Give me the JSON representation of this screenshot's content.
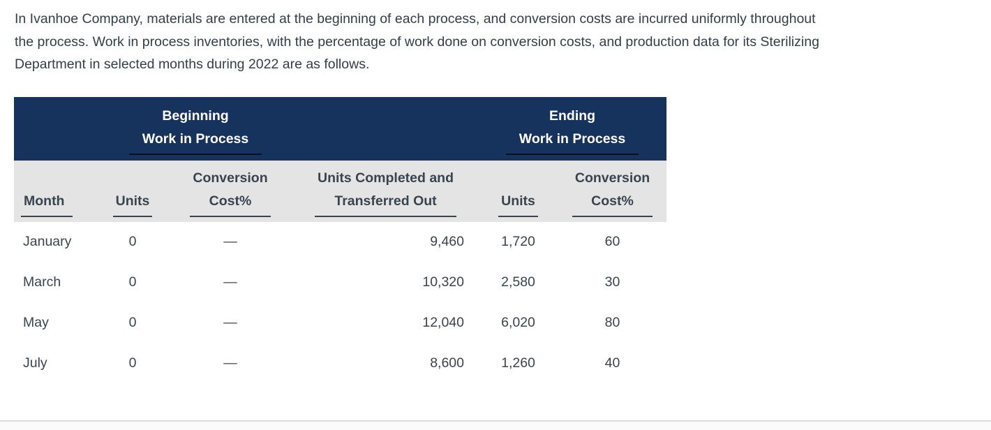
{
  "intro": {
    "line1": "In Ivanhoe Company, materials are entered at the beginning of each process, and conversion costs are incurred uniformly throughout",
    "line2": "the process. Work in process inventories, with the percentage of work done on conversion costs, and production data for its Sterilizing",
    "line3": "Department in selected months during 2022 are as follows."
  },
  "table": {
    "group_headers": {
      "beginning": {
        "line1": "Beginning",
        "line2": "Work in Process"
      },
      "ending": {
        "line1": "Ending",
        "line2": "Work in Process"
      }
    },
    "columns": {
      "month": "Month",
      "beg_units": "Units",
      "beg_conv_line1": "Conversion",
      "beg_conv_line2": "Cost%",
      "completed_line1": "Units Completed and",
      "completed_line2": "Transferred Out",
      "end_units": "Units",
      "end_conv_line1": "Conversion",
      "end_conv_line2": "Cost%"
    },
    "rows": [
      {
        "month": "January",
        "beg_units": "0",
        "beg_conversion": "—",
        "completed": "9,460",
        "end_units": "1,720",
        "end_conversion": "60"
      },
      {
        "month": "March",
        "beg_units": "0",
        "beg_conversion": "—",
        "completed": "10,320",
        "end_units": "2,580",
        "end_conversion": "30"
      },
      {
        "month": "May",
        "beg_units": "0",
        "beg_conversion": "—",
        "completed": "12,040",
        "end_units": "6,020",
        "end_conversion": "80"
      },
      {
        "month": "July",
        "beg_units": "0",
        "beg_conversion": "—",
        "completed": "8,600",
        "end_units": "1,260",
        "end_conversion": "40"
      }
    ],
    "colors": {
      "header_bg": "#16335d",
      "header_text": "#ffffff",
      "subheader_bg": "#e4e4e4",
      "body_text": "#39444e",
      "header_underline": "#060f1e",
      "subheader_underline": "#39444e",
      "divider": "#dcdcdc"
    }
  }
}
